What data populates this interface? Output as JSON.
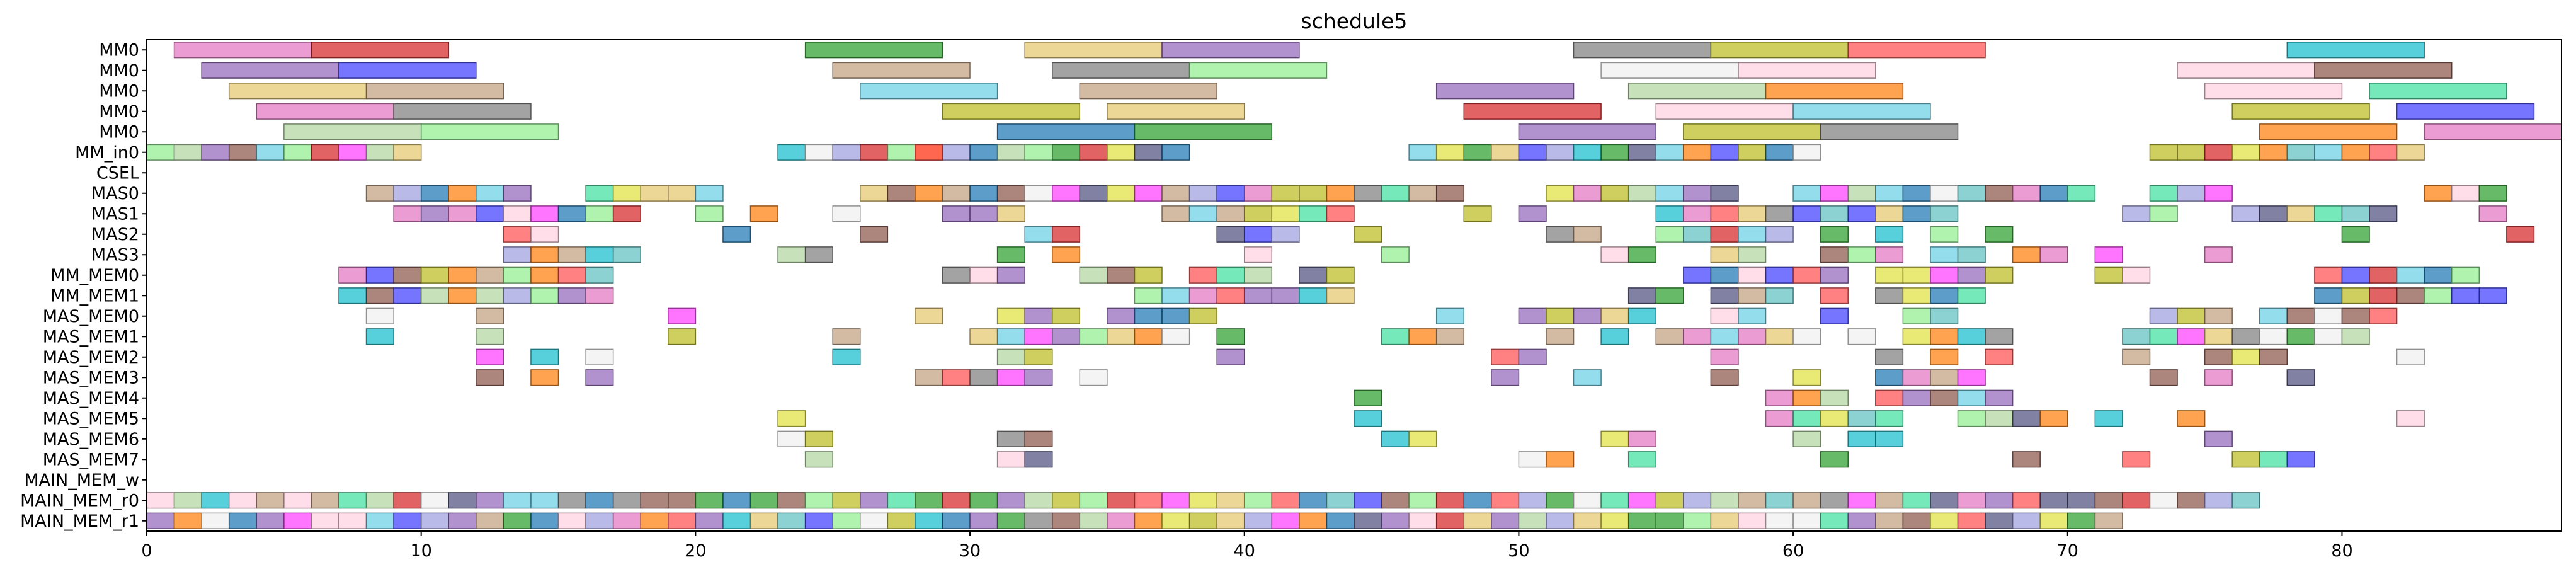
{
  "chart_data": {
    "type": "gantt",
    "title": "schedule5",
    "xlabel": "",
    "ylabel": "",
    "xlim": [
      0,
      88
    ],
    "xticks": [
      0,
      10,
      20,
      30,
      40,
      50,
      60,
      70,
      80
    ],
    "grid": false,
    "rows": [
      "MM0",
      "MM0",
      "MM0",
      "MM0",
      "MM0",
      "MM_in0",
      "CSEL",
      "MAS0",
      "MAS1",
      "MAS2",
      "MAS3",
      "MM_MEM0",
      "MM_MEM1",
      "MAS_MEM0",
      "MAS_MEM1",
      "MAS_MEM2",
      "MAS_MEM3",
      "MAS_MEM4",
      "MAS_MEM5",
      "MAS_MEM6",
      "MAS_MEM7",
      "MAIN_MEM_w",
      "MAIN_MEM_r0",
      "MAIN_MEM_r1"
    ],
    "palette": [
      "#e377c2",
      "#d62728",
      "#9467bd",
      "#1f77b4",
      "#2ca02c",
      "#ff7f0e",
      "#8c564b",
      "#17becf",
      "#bcbd22",
      "#7f7f7f",
      "#e6c86e",
      "#6ad0e6",
      "#90ee90",
      "#4040ff",
      "#b2d7a0",
      "#ff5050",
      "#a0a0e0",
      "#40e0a0",
      "#c0a080",
      "#f0f0f0",
      "#ffd0e0",
      "#ff40ff",
      "#60c0c0",
      "#e0e040",
      "#505080"
    ],
    "tasks": [
      {
        "row": 0,
        "start": 1,
        "end": 6,
        "c": 0
      },
      {
        "row": 0,
        "start": 6,
        "end": 11,
        "c": 1
      },
      {
        "row": 0,
        "start": 24,
        "end": 29,
        "c": 4
      },
      {
        "row": 0,
        "start": 32,
        "end": 37,
        "c": 10
      },
      {
        "row": 0,
        "start": 37,
        "end": 42,
        "c": 2
      },
      {
        "row": 0,
        "start": 52,
        "end": 57,
        "c": 9
      },
      {
        "row": 0,
        "start": 57,
        "end": 62,
        "c": 8
      },
      {
        "row": 0,
        "start": 62,
        "end": 67,
        "c": 15
      },
      {
        "row": 0,
        "start": 78,
        "end": 83,
        "c": 7
      },
      {
        "row": 1,
        "start": 2,
        "end": 7,
        "c": 2
      },
      {
        "row": 1,
        "start": 7,
        "end": 12,
        "c": 13
      },
      {
        "row": 1,
        "start": 25,
        "end": 30,
        "c": 18
      },
      {
        "row": 1,
        "start": 33,
        "end": 38,
        "c": 9
      },
      {
        "row": 1,
        "start": 38,
        "end": 43,
        "c": 12
      },
      {
        "row": 1,
        "start": 53,
        "end": 58,
        "c": 19
      },
      {
        "row": 1,
        "start": 58,
        "end": 63,
        "c": 20
      },
      {
        "row": 1,
        "start": 74,
        "end": 79,
        "c": 20
      },
      {
        "row": 1,
        "start": 79,
        "end": 84,
        "c": 6
      },
      {
        "row": 2,
        "start": 3,
        "end": 8,
        "c": 10
      },
      {
        "row": 2,
        "start": 8,
        "end": 13,
        "c": 18
      },
      {
        "row": 2,
        "start": 26,
        "end": 31,
        "c": 11
      },
      {
        "row": 2,
        "start": 34,
        "end": 39,
        "c": 18
      },
      {
        "row": 2,
        "start": 47,
        "end": 52,
        "c": 2
      },
      {
        "row": 2,
        "start": 54,
        "end": 59,
        "c": 14
      },
      {
        "row": 2,
        "start": 59,
        "end": 64,
        "c": 5
      },
      {
        "row": 2,
        "start": 75,
        "end": 80,
        "c": 20
      },
      {
        "row": 2,
        "start": 81,
        "end": 86,
        "c": 17
      },
      {
        "row": 3,
        "start": 4,
        "end": 9,
        "c": 0
      },
      {
        "row": 3,
        "start": 9,
        "end": 14,
        "c": 9
      },
      {
        "row": 3,
        "start": 29,
        "end": 34,
        "c": 8
      },
      {
        "row": 3,
        "start": 35,
        "end": 40,
        "c": 10
      },
      {
        "row": 3,
        "start": 48,
        "end": 53,
        "c": 1
      },
      {
        "row": 3,
        "start": 55,
        "end": 60,
        "c": 20
      },
      {
        "row": 3,
        "start": 60,
        "end": 65,
        "c": 11
      },
      {
        "row": 3,
        "start": 76,
        "end": 81,
        "c": 8
      },
      {
        "row": 3,
        "start": 82,
        "end": 87,
        "c": 13
      },
      {
        "row": 4,
        "start": 5,
        "end": 10,
        "c": 14
      },
      {
        "row": 4,
        "start": 10,
        "end": 15,
        "c": 12
      },
      {
        "row": 4,
        "start": 31,
        "end": 36,
        "c": 3
      },
      {
        "row": 4,
        "start": 36,
        "end": 41,
        "c": 4
      },
      {
        "row": 4,
        "start": 50,
        "end": 55,
        "c": 2
      },
      {
        "row": 4,
        "start": 56,
        "end": 61,
        "c": 8
      },
      {
        "row": 4,
        "start": 61,
        "end": 66,
        "c": 9
      },
      {
        "row": 4,
        "start": 77,
        "end": 82,
        "c": 5
      },
      {
        "row": 4,
        "start": 83,
        "end": 88,
        "c": 0
      },
      {
        "row": 5,
        "start": 0,
        "end": 10,
        "c": -1,
        "sub": 10
      },
      {
        "row": 5,
        "start": 23,
        "end": 38,
        "c": -1,
        "sub": 15
      },
      {
        "row": 5,
        "start": 28,
        "end": 29,
        "c": 15
      },
      {
        "row": 5,
        "start": 46,
        "end": 61,
        "c": -1,
        "sub": 15
      },
      {
        "row": 5,
        "start": 73,
        "end": 83,
        "c": -1,
        "sub": 10
      },
      {
        "row": 7,
        "start": 8,
        "end": 14,
        "c": -1,
        "sub": 6
      },
      {
        "row": 7,
        "start": 15,
        "end": 21,
        "c": -1,
        "sub": 6,
        "gap": true
      },
      {
        "row": 7,
        "start": 26,
        "end": 40,
        "c": -1,
        "sub": 14
      },
      {
        "row": 7,
        "start": 40,
        "end": 48,
        "c": -1,
        "sub": 8
      },
      {
        "row": 7,
        "start": 51,
        "end": 58,
        "c": -1,
        "sub": 7
      },
      {
        "row": 7,
        "start": 60,
        "end": 71,
        "c": -1,
        "sub": 11
      },
      {
        "row": 7,
        "start": 73,
        "end": 76,
        "c": -1,
        "sub": 3
      },
      {
        "row": 7,
        "start": 83,
        "end": 86,
        "c": -1,
        "sub": 3
      },
      {
        "row": 8,
        "start": 9,
        "end": 18,
        "c": -1,
        "sub": 9
      },
      {
        "row": 8,
        "start": 20,
        "end": 23,
        "c": -1,
        "sub": 3,
        "gap": true
      },
      {
        "row": 8,
        "start": 25,
        "end": 33,
        "c": -1,
        "sub": 8,
        "gap": true
      },
      {
        "row": 8,
        "start": 37,
        "end": 44,
        "c": -1,
        "sub": 7
      },
      {
        "row": 8,
        "start": 48,
        "end": 53,
        "c": -1,
        "sub": 5,
        "gap": true
      },
      {
        "row": 8,
        "start": 55,
        "end": 66,
        "c": -1,
        "sub": 11
      },
      {
        "row": 8,
        "start": 72,
        "end": 74,
        "c": -1,
        "sub": 2
      },
      {
        "row": 8,
        "start": 76,
        "end": 82,
        "c": -1,
        "sub": 6,
        "gap": true
      },
      {
        "row": 8,
        "start": 85,
        "end": 86,
        "c": 0
      },
      {
        "row": 9,
        "start": 13,
        "end": 15,
        "c": -1,
        "sub": 2
      },
      {
        "row": 9,
        "start": 21,
        "end": 22,
        "c": 3
      },
      {
        "row": 9,
        "start": 26,
        "end": 27,
        "c": 6
      },
      {
        "row": 9,
        "start": 32,
        "end": 34,
        "c": -1,
        "sub": 2
      },
      {
        "row": 9,
        "start": 39,
        "end": 42,
        "c": -1,
        "sub": 3
      },
      {
        "row": 9,
        "start": 44,
        "end": 45,
        "c": 8
      },
      {
        "row": 9,
        "start": 51,
        "end": 53,
        "c": -1,
        "sub": 2
      },
      {
        "row": 9,
        "start": 55,
        "end": 68,
        "c": -1,
        "sub": 13,
        "gap": true
      },
      {
        "row": 9,
        "start": 80,
        "end": 81,
        "c": 4
      },
      {
        "row": 9,
        "start": 86,
        "end": 87,
        "c": 1
      },
      {
        "row": 10,
        "start": 13,
        "end": 18,
        "c": -1,
        "sub": 5
      },
      {
        "row": 10,
        "start": 23,
        "end": 25,
        "c": -1,
        "sub": 2
      },
      {
        "row": 10,
        "start": 31,
        "end": 32,
        "c": 4
      },
      {
        "row": 10,
        "start": 33,
        "end": 34,
        "c": 5
      },
      {
        "row": 10,
        "start": 40,
        "end": 41,
        "c": 20
      },
      {
        "row": 10,
        "start": 45,
        "end": 46,
        "c": 12
      },
      {
        "row": 10,
        "start": 53,
        "end": 55,
        "c": -1,
        "sub": 2
      },
      {
        "row": 10,
        "start": 57,
        "end": 72,
        "c": -1,
        "sub": 15,
        "gap": true
      },
      {
        "row": 10,
        "start": 75,
        "end": 76,
        "c": 0
      },
      {
        "row": 11,
        "start": 7,
        "end": 17,
        "c": -1,
        "sub": 10
      },
      {
        "row": 11,
        "start": 29,
        "end": 44,
        "c": -1,
        "sub": 15,
        "gap": true
      },
      {
        "row": 11,
        "start": 56,
        "end": 73,
        "c": -1,
        "sub": 17,
        "gap": true
      },
      {
        "row": 11,
        "start": 79,
        "end": 85,
        "c": -1,
        "sub": 6
      },
      {
        "row": 12,
        "start": 7,
        "end": 17,
        "c": -1,
        "sub": 10
      },
      {
        "row": 12,
        "start": 36,
        "end": 44,
        "c": -1,
        "sub": 8
      },
      {
        "row": 12,
        "start": 54,
        "end": 69,
        "c": -1,
        "sub": 15,
        "gap": true
      },
      {
        "row": 12,
        "start": 79,
        "end": 86,
        "c": -1,
        "sub": 7
      },
      {
        "row": 13,
        "start": 8,
        "end": 9,
        "c": 19
      },
      {
        "row": 13,
        "start": 12,
        "end": 13,
        "c": 18
      },
      {
        "row": 13,
        "start": 19,
        "end": 20,
        "c": 21
      },
      {
        "row": 13,
        "start": 28,
        "end": 29,
        "c": 10
      },
      {
        "row": 13,
        "start": 31,
        "end": 34,
        "c": -1,
        "sub": 3
      },
      {
        "row": 13,
        "start": 35,
        "end": 39,
        "c": -1,
        "sub": 4
      },
      {
        "row": 13,
        "start": 47,
        "end": 48,
        "c": 11
      },
      {
        "row": 13,
        "start": 50,
        "end": 55,
        "c": -1,
        "sub": 5
      },
      {
        "row": 13,
        "start": 57,
        "end": 59,
        "c": -1,
        "sub": 2
      },
      {
        "row": 13,
        "start": 61,
        "end": 62,
        "c": 13
      },
      {
        "row": 13,
        "start": 64,
        "end": 66,
        "c": -1,
        "sub": 2
      },
      {
        "row": 13,
        "start": 73,
        "end": 76,
        "c": -1,
        "sub": 3
      },
      {
        "row": 13,
        "start": 77,
        "end": 82,
        "c": -1,
        "sub": 5
      },
      {
        "row": 14,
        "start": 8,
        "end": 9,
        "c": 7
      },
      {
        "row": 14,
        "start": 12,
        "end": 13,
        "c": 14
      },
      {
        "row": 14,
        "start": 19,
        "end": 20,
        "c": 8
      },
      {
        "row": 14,
        "start": 25,
        "end": 26,
        "c": 18
      },
      {
        "row": 14,
        "start": 30,
        "end": 38,
        "c": -1,
        "sub": 8
      },
      {
        "row": 14,
        "start": 39,
        "end": 40,
        "c": 4
      },
      {
        "row": 14,
        "start": 45,
        "end": 48,
        "c": -1,
        "sub": 3
      },
      {
        "row": 14,
        "start": 50,
        "end": 63,
        "c": -1,
        "sub": 13,
        "gap": true
      },
      {
        "row": 14,
        "start": 64,
        "end": 68,
        "c": -1,
        "sub": 4
      },
      {
        "row": 14,
        "start": 72,
        "end": 81,
        "c": -1,
        "sub": 9
      },
      {
        "row": 15,
        "start": 12,
        "end": 13,
        "c": 21
      },
      {
        "row": 15,
        "start": 14,
        "end": 15,
        "c": 7
      },
      {
        "row": 15,
        "start": 16,
        "end": 17,
        "c": 19
      },
      {
        "row": 15,
        "start": 25,
        "end": 26,
        "c": 7
      },
      {
        "row": 15,
        "start": 31,
        "end": 33,
        "c": -1,
        "sub": 2
      },
      {
        "row": 15,
        "start": 39,
        "end": 40,
        "c": 2
      },
      {
        "row": 15,
        "start": 49,
        "end": 51,
        "c": -1,
        "sub": 2
      },
      {
        "row": 15,
        "start": 57,
        "end": 58,
        "c": 0
      },
      {
        "row": 15,
        "start": 63,
        "end": 69,
        "c": -1,
        "sub": 6,
        "gap": true
      },
      {
        "row": 15,
        "start": 72,
        "end": 73,
        "c": 18
      },
      {
        "row": 15,
        "start": 75,
        "end": 78,
        "c": -1,
        "sub": 3
      },
      {
        "row": 15,
        "start": 82,
        "end": 83,
        "c": 19
      },
      {
        "row": 16,
        "start": 12,
        "end": 13,
        "c": 6
      },
      {
        "row": 16,
        "start": 14,
        "end": 15,
        "c": 5
      },
      {
        "row": 16,
        "start": 16,
        "end": 17,
        "c": 2
      },
      {
        "row": 16,
        "start": 28,
        "end": 33,
        "c": -1,
        "sub": 5
      },
      {
        "row": 16,
        "start": 34,
        "end": 35,
        "c": 19
      },
      {
        "row": 16,
        "start": 49,
        "end": 50,
        "c": 2
      },
      {
        "row": 16,
        "start": 52,
        "end": 53,
        "c": 11
      },
      {
        "row": 16,
        "start": 57,
        "end": 58,
        "c": 6
      },
      {
        "row": 16,
        "start": 60,
        "end": 61,
        "c": 23
      },
      {
        "row": 16,
        "start": 63,
        "end": 67,
        "c": -1,
        "sub": 4
      },
      {
        "row": 16,
        "start": 73,
        "end": 74,
        "c": 6
      },
      {
        "row": 16,
        "start": 75,
        "end": 80,
        "c": -1,
        "sub": 5,
        "gap": true
      },
      {
        "row": 17,
        "start": 44,
        "end": 45,
        "c": 4
      },
      {
        "row": 17,
        "start": 59,
        "end": 62,
        "c": -1,
        "sub": 3
      },
      {
        "row": 17,
        "start": 63,
        "end": 68,
        "c": -1,
        "sub": 5
      },
      {
        "row": 18,
        "start": 23,
        "end": 24,
        "c": 23
      },
      {
        "row": 18,
        "start": 44,
        "end": 45,
        "c": 7
      },
      {
        "row": 18,
        "start": 59,
        "end": 72,
        "c": -1,
        "sub": 13,
        "gap": true
      },
      {
        "row": 18,
        "start": 74,
        "end": 75,
        "c": 5
      },
      {
        "row": 18,
        "start": 82,
        "end": 83,
        "c": 20
      },
      {
        "row": 19,
        "start": 23,
        "end": 25,
        "c": -1,
        "sub": 2
      },
      {
        "row": 19,
        "start": 31,
        "end": 33,
        "c": -1,
        "sub": 2
      },
      {
        "row": 19,
        "start": 45,
        "end": 47,
        "c": -1,
        "sub": 2
      },
      {
        "row": 19,
        "start": 53,
        "end": 55,
        "c": -1,
        "sub": 2
      },
      {
        "row": 19,
        "start": 60,
        "end": 61,
        "c": 14
      },
      {
        "row": 19,
        "start": 62,
        "end": 64,
        "c": -1,
        "sub": 2
      },
      {
        "row": 19,
        "start": 75,
        "end": 76,
        "c": 2
      },
      {
        "row": 20,
        "start": 24,
        "end": 25,
        "c": 14
      },
      {
        "row": 20,
        "start": 31,
        "end": 33,
        "c": -1,
        "sub": 2
      },
      {
        "row": 20,
        "start": 50,
        "end": 52,
        "c": -1,
        "sub": 2
      },
      {
        "row": 20,
        "start": 54,
        "end": 55,
        "c": 17
      },
      {
        "row": 20,
        "start": 61,
        "end": 62,
        "c": 4
      },
      {
        "row": 20,
        "start": 68,
        "end": 69,
        "c": 6
      },
      {
        "row": 20,
        "start": 72,
        "end": 73,
        "c": 15
      },
      {
        "row": 20,
        "start": 76,
        "end": 79,
        "c": -1,
        "sub": 3
      },
      {
        "row": 22,
        "start": 0,
        "end": 77,
        "c": -1,
        "sub": 77
      },
      {
        "row": 23,
        "start": 0,
        "end": 72,
        "c": -1,
        "sub": 72
      }
    ]
  }
}
